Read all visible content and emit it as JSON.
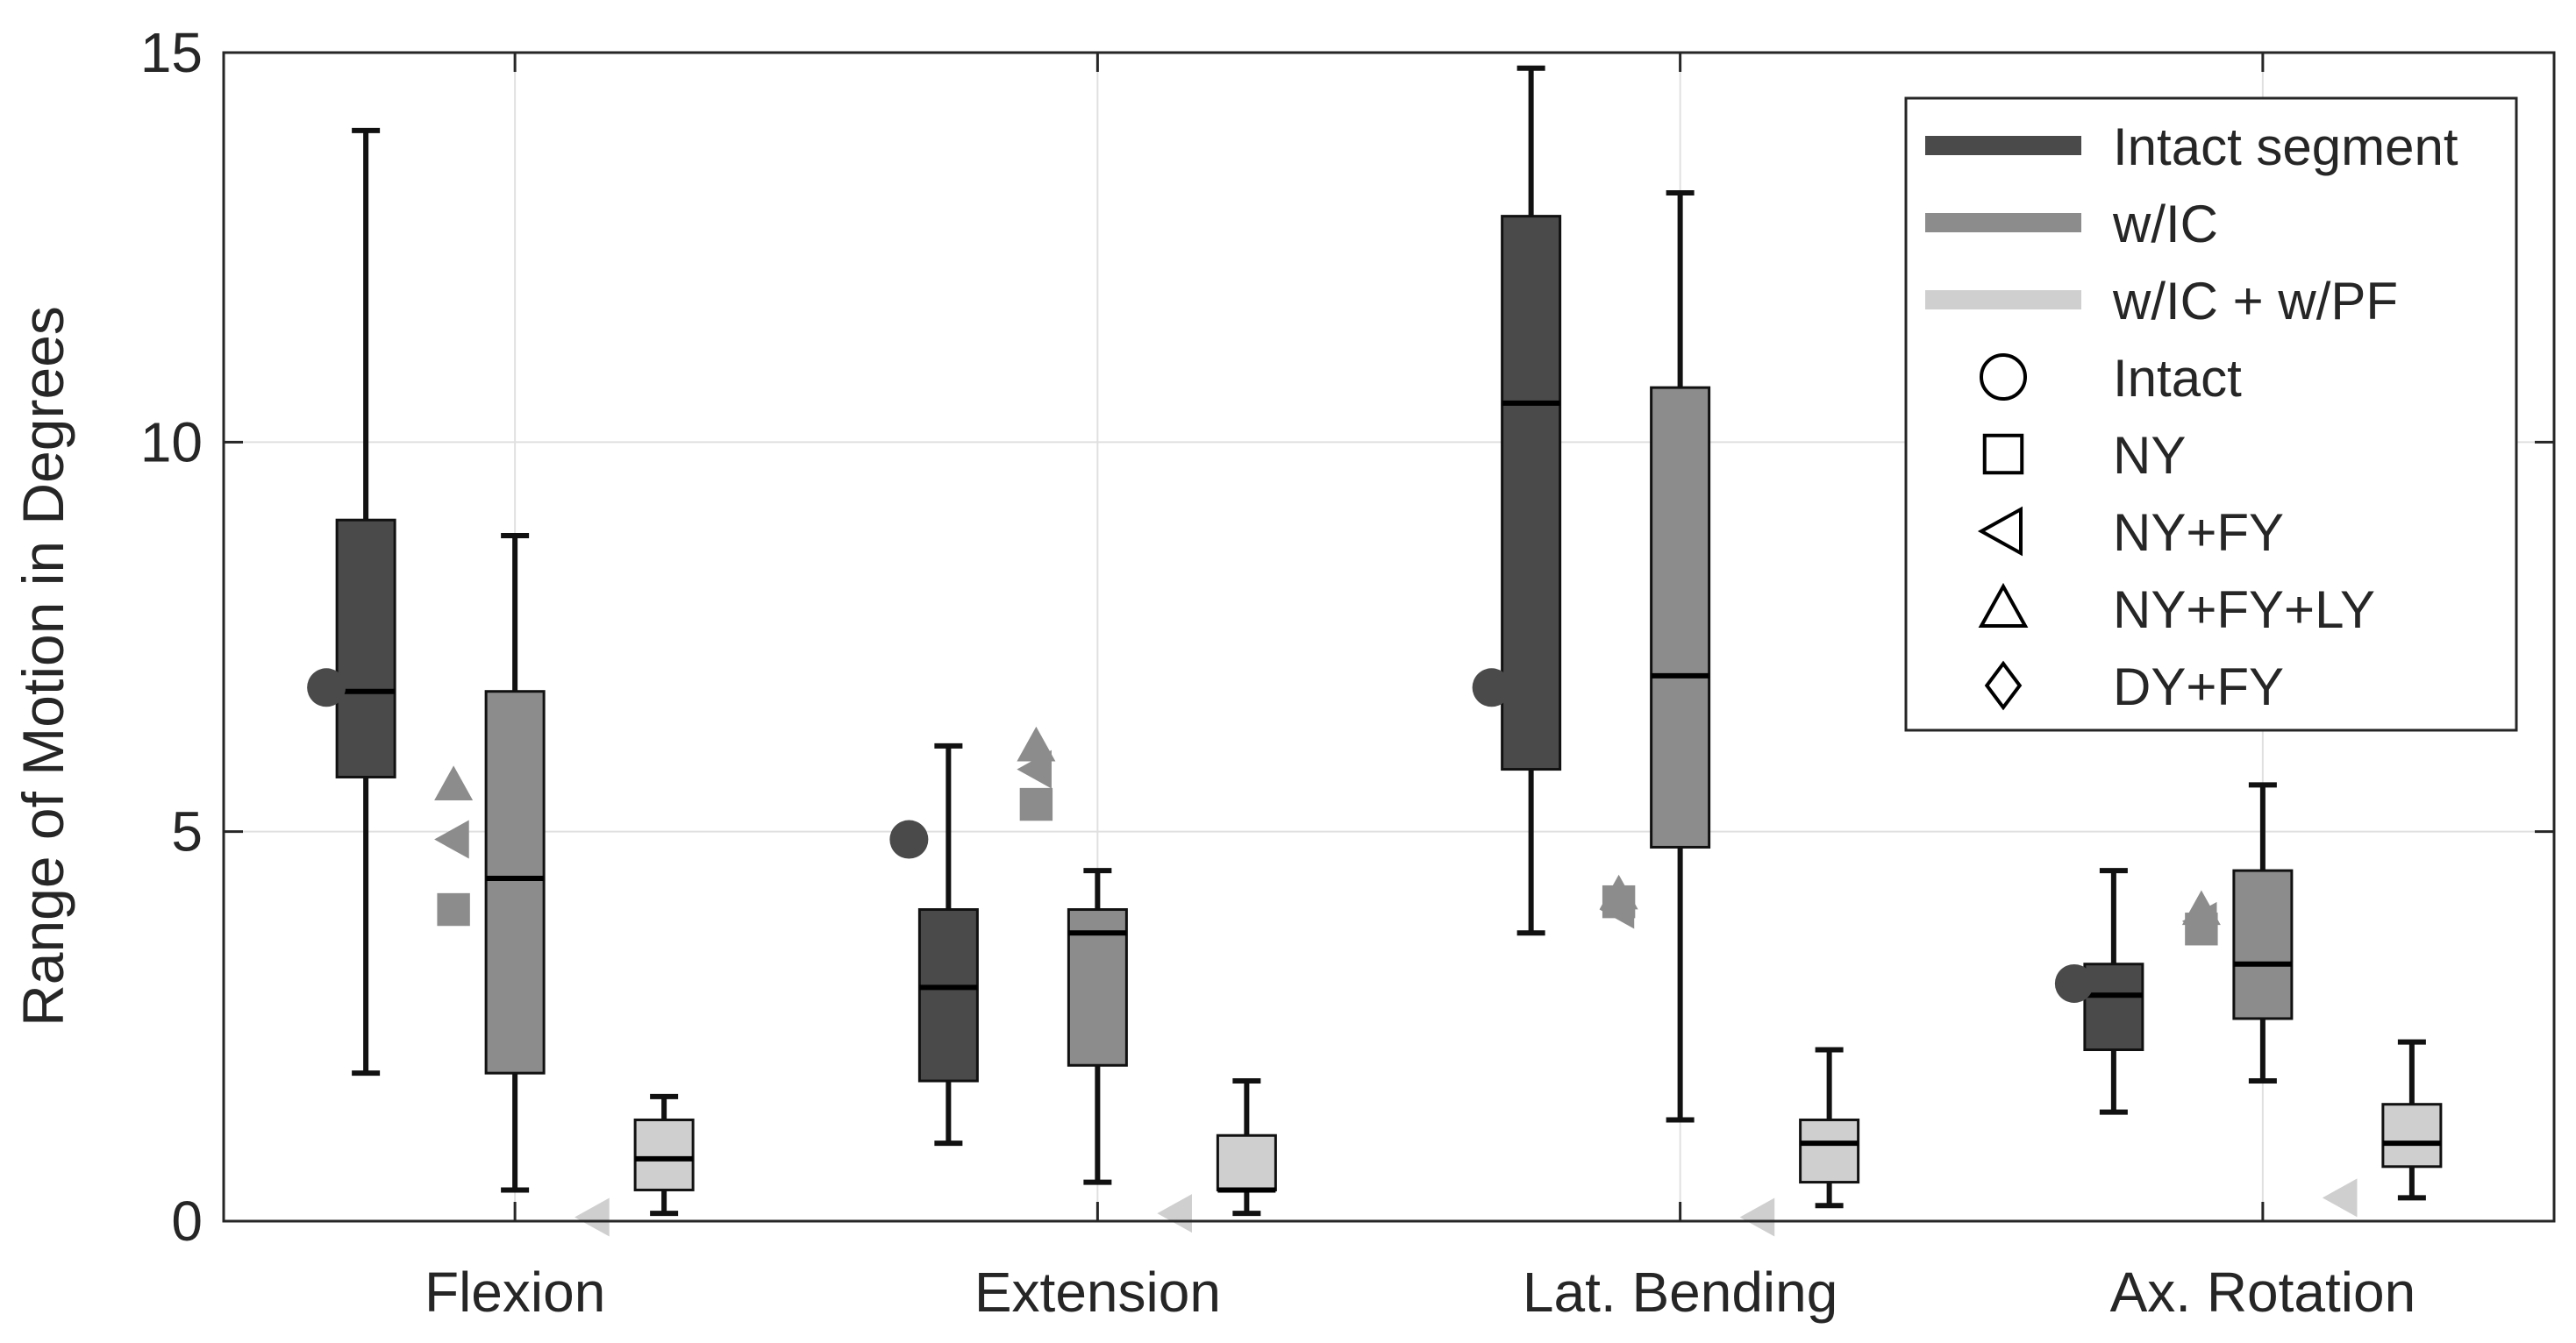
{
  "chart_data": {
    "type": "box",
    "title": "",
    "xlabel": "",
    "ylabel": "Range of Motion in Degrees",
    "ylim": [
      0,
      15
    ],
    "yticks": [
      "0",
      "5",
      "10",
      "15"
    ],
    "yticks_values": [
      0,
      5,
      10,
      15
    ],
    "categories": [
      "Flexion",
      "Extension",
      "Lat. Bending",
      "Ax. Rotation"
    ],
    "grid": true,
    "legend_position": "top-right",
    "series": [
      {
        "name": "Intact segment",
        "color": "#4a4a4a",
        "boxes": [
          {
            "min": 1.9,
            "q1": 5.7,
            "median": 6.8,
            "q3": 9.0,
            "max": 14.0
          },
          {
            "min": 1.0,
            "q1": 1.8,
            "median": 3.0,
            "q3": 4.0,
            "max": 6.1
          },
          {
            "min": 3.7,
            "q1": 5.8,
            "median": 10.5,
            "q3": 12.9,
            "max": 14.8
          },
          {
            "min": 1.4,
            "q1": 2.2,
            "median": 2.9,
            "q3": 3.3,
            "max": 4.5
          }
        ]
      },
      {
        "name": "w/IC",
        "color": "#8c8c8c",
        "boxes": [
          {
            "min": 0.4,
            "q1": 1.9,
            "median": 4.4,
            "q3": 6.8,
            "max": 8.8
          },
          {
            "min": 0.5,
            "q1": 2.0,
            "median": 3.7,
            "q3": 4.0,
            "max": 4.5
          },
          {
            "min": 1.3,
            "q1": 4.8,
            "median": 7.0,
            "q3": 10.7,
            "max": 13.2
          },
          {
            "min": 1.8,
            "q1": 2.6,
            "median": 3.3,
            "q3": 4.5,
            "max": 5.6
          }
        ]
      },
      {
        "name": "w/IC + w/PF",
        "color": "#cfcfcf",
        "boxes": [
          {
            "min": 0.1,
            "q1": 0.4,
            "median": 0.8,
            "q3": 1.3,
            "max": 1.6
          },
          {
            "min": 0.1,
            "q1": 0.4,
            "median": 0.4,
            "q3": 1.1,
            "max": 1.8
          },
          {
            "min": 0.2,
            "q1": 0.5,
            "median": 1.0,
            "q3": 1.3,
            "max": 2.2
          },
          {
            "min": 0.3,
            "q1": 0.7,
            "median": 1.0,
            "q3": 1.5,
            "max": 2.3
          }
        ]
      }
    ],
    "markers": [
      {
        "category": "Flexion",
        "group": "Intact segment",
        "shape": "circle",
        "label": "Intact",
        "value": 6.85,
        "color": "#4a4a4a"
      },
      {
        "category": "Extension",
        "group": "Intact segment",
        "shape": "circle",
        "label": "Intact",
        "value": 4.9,
        "color": "#4a4a4a"
      },
      {
        "category": "Lat. Bending",
        "group": "Intact segment",
        "shape": "circle",
        "label": "Intact",
        "value": 6.85,
        "color": "#4a4a4a"
      },
      {
        "category": "Ax. Rotation",
        "group": "Intact segment",
        "shape": "circle",
        "label": "Intact",
        "value": 3.05,
        "color": "#4a4a4a"
      },
      {
        "category": "Flexion",
        "group": "w/IC",
        "shape": "triangle-up",
        "label": "NY+FY+LY",
        "value": 5.6,
        "color": "#8c8c8c"
      },
      {
        "category": "Flexion",
        "group": "w/IC",
        "shape": "triangle-left",
        "label": "NY+FY",
        "value": 4.9,
        "color": "#8c8c8c"
      },
      {
        "category": "Flexion",
        "group": "w/IC",
        "shape": "square",
        "label": "NY",
        "value": 4.0,
        "color": "#8c8c8c"
      },
      {
        "category": "Extension",
        "group": "w/IC",
        "shape": "triangle-up",
        "label": "NY+FY+LY",
        "value": 6.1,
        "color": "#8c8c8c"
      },
      {
        "category": "Extension",
        "group": "w/IC",
        "shape": "triangle-left",
        "label": "NY+FY",
        "value": 5.8,
        "color": "#8c8c8c"
      },
      {
        "category": "Extension",
        "group": "w/IC",
        "shape": "square",
        "label": "NY",
        "value": 5.35,
        "color": "#8c8c8c"
      },
      {
        "category": "Lat. Bending",
        "group": "w/IC",
        "shape": "triangle-up",
        "label": "NY+FY+LY",
        "value": 4.2,
        "color": "#8c8c8c"
      },
      {
        "category": "Lat. Bending",
        "group": "w/IC",
        "shape": "square",
        "label": "NY",
        "value": 4.1,
        "color": "#8c8c8c"
      },
      {
        "category": "Lat. Bending",
        "group": "w/IC",
        "shape": "triangle-left",
        "label": "NY+FY",
        "value": 4.0,
        "color": "#8c8c8c"
      },
      {
        "category": "Ax. Rotation",
        "group": "w/IC",
        "shape": "triangle-up",
        "label": "NY+FY+LY",
        "value": 4.0,
        "color": "#8c8c8c"
      },
      {
        "category": "Ax. Rotation",
        "group": "w/IC",
        "shape": "triangle-left",
        "label": "NY+FY",
        "value": 3.85,
        "color": "#8c8c8c"
      },
      {
        "category": "Ax. Rotation",
        "group": "w/IC",
        "shape": "square",
        "label": "NY",
        "value": 3.75,
        "color": "#8c8c8c"
      },
      {
        "category": "Flexion",
        "group": "w/IC + w/PF",
        "shape": "triangle-left",
        "label": "NY+FY",
        "value": 0.05,
        "color": "#cfcfcf"
      },
      {
        "category": "Extension",
        "group": "w/IC + w/PF",
        "shape": "triangle-left",
        "label": "NY+FY",
        "value": 0.1,
        "color": "#cfcfcf"
      },
      {
        "category": "Lat. Bending",
        "group": "w/IC + w/PF",
        "shape": "triangle-left",
        "label": "NY+FY",
        "value": 0.05,
        "color": "#cfcfcf"
      },
      {
        "category": "Ax. Rotation",
        "group": "w/IC + w/PF",
        "shape": "triangle-left",
        "label": "NY+FY",
        "value": 0.3,
        "color": "#cfcfcf"
      }
    ],
    "legend": {
      "series_entries": [
        {
          "label": "Intact segment",
          "color": "#4a4a4a"
        },
        {
          "label": "w/IC",
          "color": "#8c8c8c"
        },
        {
          "label": "w/IC + w/PF",
          "color": "#cfcfcf"
        }
      ],
      "marker_entries": [
        {
          "label": "Intact",
          "shape": "circle"
        },
        {
          "label": "NY",
          "shape": "square"
        },
        {
          "label": "NY+FY",
          "shape": "triangle-left"
        },
        {
          "label": "NY+FY+LY",
          "shape": "triangle-up"
        },
        {
          "label": "DY+FY",
          "shape": "diamond"
        }
      ]
    }
  }
}
